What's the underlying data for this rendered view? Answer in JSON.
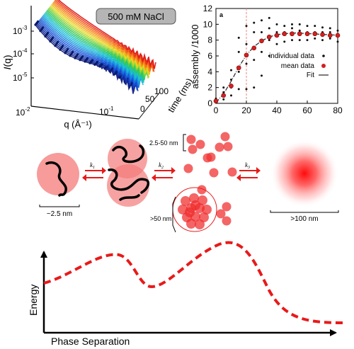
{
  "saxs": {
    "badge": "500 mM NaCl",
    "ylabel": "I(q)",
    "ylabel_var": "I",
    "ylabel_arg": "(q)",
    "yticks": [
      {
        "base": "10",
        "exp": "-3"
      },
      {
        "base": "10",
        "exp": "-4"
      },
      {
        "base": "10",
        "exp": "-5"
      }
    ],
    "xticks": [
      {
        "base": "10",
        "exp": "-2"
      },
      {
        "base": "10",
        "exp": "-1"
      }
    ],
    "xlabel": "q (Å⁻¹)",
    "time_label": "time (ms)",
    "time_ticks": [
      "0",
      "50",
      "100"
    ]
  },
  "kinetics": {
    "panel_letter": "a",
    "ylabel": "assembly /1000",
    "legend": [
      "individual data",
      "mean data",
      "Fit"
    ],
    "colors": {
      "individual": "#111111",
      "mean": "#d42020",
      "fit": "#222222",
      "marker": "#f08080"
    }
  },
  "chart_data": {
    "type": "scatter",
    "xlim": [
      0,
      80
    ],
    "ylim": [
      0,
      12
    ],
    "xticks": [
      0,
      20,
      40,
      60,
      80
    ],
    "yticks": [
      0,
      2,
      4,
      6,
      8,
      10,
      12
    ],
    "vline_x": 20,
    "series": [
      {
        "name": "mean data",
        "x": [
          0,
          5,
          10,
          15,
          20,
          25,
          30,
          35,
          40,
          45,
          50,
          55,
          60,
          65,
          70,
          75,
          80
        ],
        "y": [
          0.3,
          1.0,
          2.2,
          4.5,
          6.1,
          7.0,
          7.9,
          8.4,
          8.6,
          8.8,
          8.8,
          8.8,
          8.8,
          8.8,
          8.7,
          8.6,
          8.6
        ]
      },
      {
        "name": "individual data",
        "x": [
          0,
          0,
          5,
          5,
          5,
          10,
          10,
          10,
          10,
          15,
          15,
          15,
          15,
          20,
          20,
          20,
          20,
          20,
          25,
          25,
          25,
          25,
          30,
          30,
          30,
          30,
          35,
          35,
          35,
          35,
          40,
          40,
          40,
          45,
          45,
          45,
          50,
          50,
          50,
          55,
          55,
          55,
          60,
          60,
          60,
          65,
          65,
          65,
          70,
          70,
          70,
          75,
          75,
          75,
          80,
          80,
          80
        ],
        "y": [
          0.1,
          0.6,
          0.5,
          1.4,
          2.0,
          1.0,
          2.0,
          3.0,
          4.2,
          1.8,
          4.0,
          6.5,
          8.3,
          1.8,
          5.0,
          6.0,
          7.5,
          9.8,
          2.0,
          5.5,
          9.0,
          10.2,
          3.5,
          6.5,
          9.0,
          10.5,
          6.0,
          8.0,
          9.5,
          10.8,
          7.5,
          9.0,
          10.0,
          7.8,
          9.0,
          9.8,
          8.0,
          9.5,
          10.0,
          8.0,
          9.2,
          10.0,
          8.0,
          9.0,
          9.8,
          8.2,
          9.0,
          9.8,
          8.0,
          9.0,
          9.6,
          8.2,
          9.0,
          9.5,
          7.8,
          8.5,
          9.2
        ]
      },
      {
        "name": "Fit",
        "x": [
          0,
          5,
          10,
          15,
          20,
          25,
          30,
          35,
          40,
          45,
          50,
          55,
          60,
          65,
          70,
          75,
          80
        ],
        "y": [
          0.1,
          1.2,
          2.8,
          4.6,
          6.1,
          7.2,
          7.9,
          8.4,
          8.7,
          8.8,
          8.9,
          8.9,
          8.8,
          8.8,
          8.7,
          8.7,
          8.6
        ]
      }
    ]
  },
  "scheme": {
    "rates": {
      "k1": "1",
      "k2": "2",
      "k3": "3"
    },
    "k_letter": "k",
    "size_monomer": "~2.5 nm",
    "size_cluster": "2.5-50 nm",
    "size_large": ">50 nm",
    "size_droplet": ">100 nm"
  },
  "energy": {
    "ylabel": "Energy",
    "xlabel": "Phase Separation",
    "curve_color": "#e81a1a"
  }
}
